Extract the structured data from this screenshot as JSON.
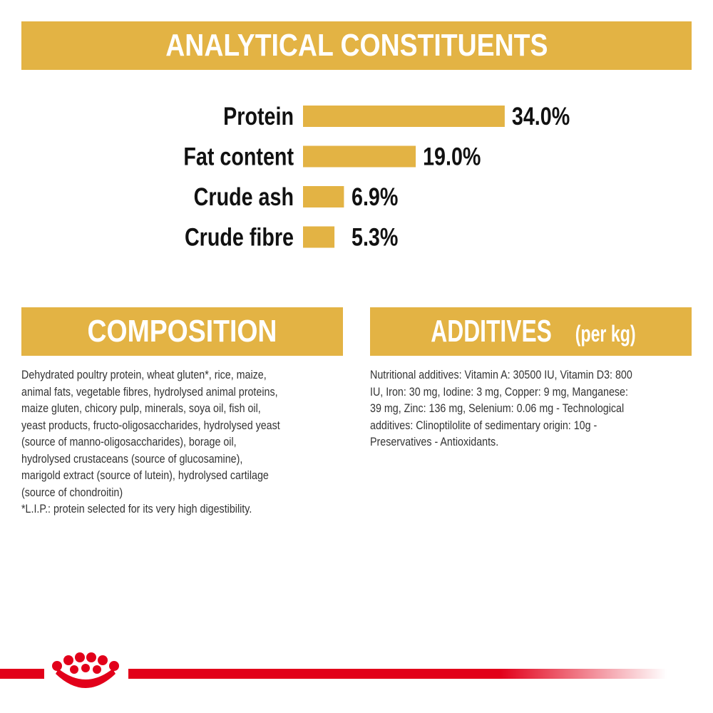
{
  "chart_data": {
    "type": "bar",
    "orientation": "horizontal",
    "title": "ANALYTICAL CONSTITUENTS",
    "categories": [
      "Protein",
      "Fat content",
      "Crude ash",
      "Crude fibre"
    ],
    "values": [
      34.0,
      19.0,
      6.9,
      5.3
    ],
    "value_labels": [
      "34.0%",
      "19.0%",
      "6.9%",
      "5.3%"
    ],
    "color": "#e3b344"
  },
  "composition": {
    "title": "COMPOSITION",
    "lines": [
      "Dehydrated poultry protein, wheat gluten*, rice, maize,",
      "animal fats, vegetable fibres, hydrolysed animal proteins,",
      "maize gluten, chicory pulp, minerals, soya oil, fish oil,",
      "yeast products, fructo-oligosaccharides, hydrolysed yeast",
      "(source of manno-oligosaccharides), borage oil,",
      "hydrolysed crustaceans (source of glucosamine),",
      "marigold extract (source of lutein), hydrolysed cartilage",
      "(source of chondroitin)",
      "*L.I.P.: protein selected for its very high digestibility."
    ]
  },
  "additives": {
    "title": "ADDITIVES",
    "title_suffix": "(per kg)",
    "lines": [
      "Nutritional additives: Vitamin A: 30500 IU, Vitamin D3: 800",
      "IU, Iron: 30 mg, Iodine: 3 mg, Copper: 9 mg, Manganese:",
      "39 mg, Zinc: 136 mg, Selenium: 0.06 mg - Technological",
      "additives: Clinoptilolite of sedimentary origin: 10g -",
      "Preservatives - Antioxidants."
    ]
  }
}
